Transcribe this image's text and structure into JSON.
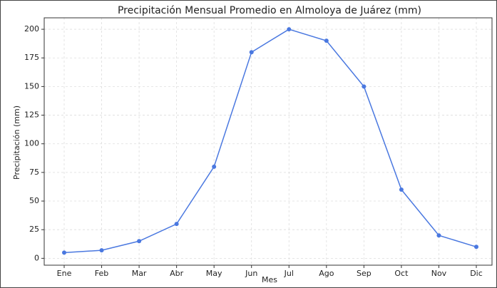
{
  "chart_data": {
    "type": "line",
    "title": "Precipitación Mensual Promedio en Almoloya de Juárez (mm)",
    "x_label": "Mes",
    "y_label": "Precipitación (mm)",
    "categories": [
      "Ene",
      "Feb",
      "Mar",
      "Abr",
      "May",
      "Jun",
      "Jul",
      "Ago",
      "Sep",
      "Oct",
      "Nov",
      "Dic"
    ],
    "series": [
      {
        "name": "Precipitación",
        "color": "#4a78e0",
        "values": [
          5,
          7,
          15,
          30,
          80,
          180,
          200,
          190,
          150,
          60,
          20,
          10
        ]
      }
    ],
    "ylim": [
      -6,
      210
    ],
    "yticks": [
      0,
      25,
      50,
      75,
      100,
      125,
      150,
      175,
      200
    ],
    "grid": true
  }
}
